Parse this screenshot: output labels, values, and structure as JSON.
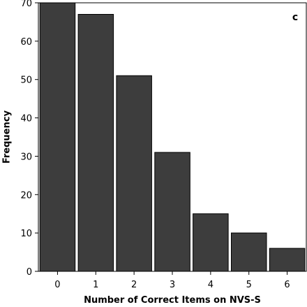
{
  "chart_data": {
    "type": "bar",
    "panel_label": "c",
    "xlabel": "Number of Correct Items on NVS-S",
    "ylabel": "Frequency",
    "categories": [
      "0",
      "1",
      "2",
      "3",
      "4",
      "5",
      "6"
    ],
    "values": [
      70,
      67,
      51,
      31,
      15,
      10,
      6
    ],
    "ylim": [
      0,
      70
    ],
    "yticks": [
      0,
      10,
      20,
      30,
      40,
      50,
      60,
      70
    ],
    "grid": false,
    "bar_color": "#3d3d3d"
  }
}
